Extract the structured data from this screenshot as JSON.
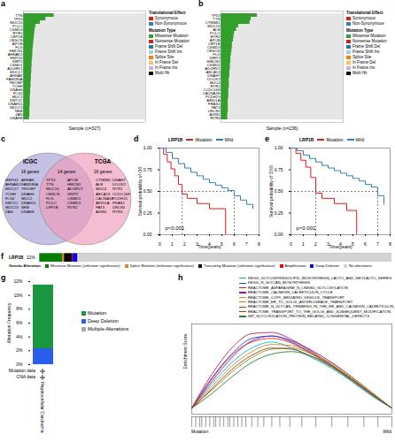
{
  "chart_data": [
    {
      "type": "oncoplot",
      "panel": "a",
      "x_label": "Sample (n=327)",
      "xlim": [
        0,
        327
      ],
      "tick_labels": "y",
      "color": "#33a02c",
      "genes": [
        "TTN",
        "TP53",
        "MUC16",
        "PCLO",
        "CSMD3",
        "RYR2",
        "LRP1B",
        "OBSCN",
        "APOB",
        "FLG",
        "HMCN1",
        "AHNAK2",
        "HSPG2",
        "XIRP2",
        "CSMD1",
        "ADGRV1",
        "MUC17",
        "AHNAK",
        "FAM186A",
        "TRIOBP",
        "TCHH",
        "DNAH6",
        "FLG2",
        "MUC2",
        "KMT2C",
        "DNAH11",
        "MUC13",
        "NEB",
        "ZAN",
        "DNAH8"
      ],
      "values": [
        82,
        60,
        45,
        33,
        31,
        30,
        29,
        28,
        27,
        26,
        25,
        25,
        24,
        23,
        23,
        22,
        22,
        21,
        21,
        20,
        20,
        19,
        19,
        18,
        18,
        18,
        17,
        17,
        17,
        16
      ],
      "legend_groups": [
        {
          "title": "Translational Effect",
          "items": [
            {
              "name": "Synonymous",
              "color": "#e41a1c"
            },
            {
              "name": "Non-Synonymous",
              "color": "#377eb8"
            }
          ]
        },
        {
          "title": "Mutation Type",
          "items": [
            {
              "name": "Missense Mutation",
              "color": "#33a02c"
            },
            {
              "name": "Nonsense Mutation",
              "color": "#e31a1c"
            },
            {
              "name": "Frame Shift Del",
              "color": "#1f78b4"
            },
            {
              "name": "Frame Shift Ins",
              "color": "#a6cee3"
            },
            {
              "name": "Splice Site",
              "color": "#ff7f00"
            },
            {
              "name": "In Frame Del",
              "color": "#fdbf6f"
            },
            {
              "name": "In Frame Ins",
              "color": "#cab2d6"
            },
            {
              "name": "Multi Hit",
              "color": "#000000"
            }
          ]
        }
      ]
    },
    {
      "type": "oncoplot",
      "panel": "b",
      "x_label": "Sample (n=236)",
      "xlim": [
        0,
        236
      ],
      "tick_labels": "y",
      "color": "#33a02c",
      "genes": [
        "TP53",
        "TTN",
        "CTNNB1",
        "MUC16",
        "ALB",
        "PCLO",
        "RYR2",
        "APOB",
        "LRP1B",
        "CSMD3",
        "OBSCN",
        "FLG",
        "XIRP2",
        "HMCN1",
        "CSMD1",
        "ADGRV1",
        "ABCA13",
        "DNAH7",
        "DOCK2",
        "MUC4",
        "RYR1",
        "CCDC168",
        "CACNA1E",
        "PCDH15",
        "ARID1A",
        "FRAS1",
        "FAT3",
        "UNC80",
        "AXIN1",
        "RYR3"
      ],
      "values": [
        70,
        58,
        56,
        34,
        30,
        26,
        25,
        24,
        22,
        22,
        21,
        20,
        19,
        19,
        18,
        18,
        17,
        17,
        16,
        16,
        16,
        15,
        15,
        15,
        14,
        14,
        14,
        14,
        13,
        13
      ],
      "legend_groups": [
        {
          "title": "Translational Effect",
          "items": [
            {
              "name": "Synonymous",
              "color": "#e41a1c"
            },
            {
              "name": "Non-Synonymous",
              "color": "#377eb8"
            }
          ]
        },
        {
          "title": "Mutation Type",
          "items": [
            {
              "name": "Missense Mutation",
              "color": "#33a02c"
            },
            {
              "name": "Nonsense Mutation",
              "color": "#e31a1c"
            },
            {
              "name": "Frame Shift Del",
              "color": "#1f78b4"
            },
            {
              "name": "Frame Shift Ins",
              "color": "#a6cee3"
            },
            {
              "name": "Splice Site",
              "color": "#ff7f00"
            },
            {
              "name": "In Frame Del",
              "color": "#fdbf6f"
            },
            {
              "name": "In Frame Ins",
              "color": "#cab2d6"
            },
            {
              "name": "Multi Hit",
              "color": "#000000"
            }
          ]
        }
      ]
    },
    {
      "type": "venn",
      "panel": "c",
      "sets": [
        {
          "name": "ICGC",
          "label": "16 genes",
          "color": "#a59fd6",
          "genes": [
            "HSPG2",
            "AHNAK2",
            "MUC17",
            "TCHH",
            "FLG2",
            "KMT2C",
            "MUC13",
            "ZAN",
            "AHNAK",
            "FAM186A",
            "TRIOBP",
            "DNAH6",
            "MUC2",
            "DNAH11",
            "NEB",
            "DNAH8"
          ]
        },
        {
          "name": "TCGA",
          "label": "16 genes",
          "color": "#ef9ab8",
          "genes": [
            "CTNNB1",
            "ALB",
            "MUC4",
            "ABCA13",
            "CACNA1E",
            "ARID1A",
            "FAT3",
            "AXIN1",
            "DNAH7",
            "DOCK2",
            "RYR1",
            "CCDC168",
            "PCDH15",
            "FRAS1",
            "UNC80",
            "RYR3"
          ]
        }
      ],
      "intersection": {
        "label": "14 genes",
        "genes": [
          "TP53",
          "TTN",
          "MUC16",
          "OBSCN",
          "FLG",
          "PCLO",
          "LRP1B",
          "APOB",
          "HMCN1",
          "ADGRV1",
          "XIRP2",
          "CSMD1",
          "CSMD3",
          "RYR2"
        ]
      }
    },
    {
      "type": "survival",
      "panel": "d",
      "legend_title": "LRP1B",
      "xlabel": "Time(years)",
      "ylabel": "Survival probability of OS",
      "xlim": [
        0,
        8
      ],
      "xticks": [
        0,
        1,
        2,
        3,
        4,
        5,
        6,
        7,
        8
      ],
      "ylim": [
        0,
        1
      ],
      "yticks": [
        {
          "value": 0,
          "label": "0.00"
        },
        {
          "value": 0.25,
          "label": "0.25"
        },
        {
          "value": 0.5,
          "label": "0.50"
        },
        {
          "value": 0.75,
          "label": "0.75"
        },
        {
          "value": 1,
          "label": "1.00"
        }
      ],
      "annotation": "p<0.001",
      "reference_line": 0.5,
      "series": [
        {
          "name": "Mutation",
          "color": "#e41a1c",
          "x": [
            0,
            0.3,
            0.6,
            0.9,
            1.2,
            1.5,
            1.8,
            2.2,
            3,
            4,
            5.3
          ],
          "values": [
            1,
            0.93,
            0.84,
            0.76,
            0.68,
            0.58,
            0.47,
            0.42,
            0.36,
            0.3,
            0
          ],
          "median": 1.8
        },
        {
          "name": "Wild",
          "color": "#377eb8",
          "x": [
            0,
            0.5,
            1,
            1.5,
            2,
            2.5,
            3,
            3.5,
            4,
            4.5,
            5,
            5.5,
            6,
            6.5,
            7,
            7.5
          ],
          "values": [
            1,
            0.95,
            0.88,
            0.82,
            0.77,
            0.72,
            0.68,
            0.64,
            0.6,
            0.57,
            0.54,
            0.51,
            0.45,
            0.4,
            0.35,
            0.3
          ],
          "median": 6
        }
      ]
    },
    {
      "type": "survival",
      "panel": "e",
      "legend_title": "LRP1B",
      "xlabel": "Time(years)",
      "ylabel": "Survival probability of DSS",
      "xlim": [
        0,
        8
      ],
      "xticks": [
        0,
        1,
        2,
        3,
        4,
        5,
        6,
        7,
        8
      ],
      "ylim": [
        0,
        1
      ],
      "yticks": [
        {
          "value": 0,
          "label": "0.00"
        },
        {
          "value": 0.25,
          "label": "0.25"
        },
        {
          "value": 0.5,
          "label": "0.50"
        },
        {
          "value": 0.75,
          "label": "0.75"
        },
        {
          "value": 1,
          "label": "1.00"
        }
      ],
      "annotation": "p<0.001",
      "reference_line": 0.5,
      "series": [
        {
          "name": "Mutation",
          "color": "#e41a1c",
          "x": [
            0,
            0.4,
            0.8,
            1.2,
            1.6,
            2,
            2.5,
            3.5,
            4.5,
            5.3
          ],
          "values": [
            1,
            0.94,
            0.86,
            0.78,
            0.66,
            0.48,
            0.42,
            0.36,
            0.28,
            0
          ],
          "median": 2
        },
        {
          "name": "Wild",
          "color": "#377eb8",
          "x": [
            0,
            0.5,
            1,
            1.5,
            2,
            2.5,
            3,
            3.5,
            4,
            4.5,
            5,
            5.5,
            6,
            6.5,
            7,
            7.5
          ],
          "values": [
            1,
            0.97,
            0.92,
            0.88,
            0.84,
            0.8,
            0.77,
            0.74,
            0.71,
            0.68,
            0.65,
            0.62,
            0.58,
            0.55,
            0.45,
            0.35
          ],
          "median": 7
        }
      ]
    },
    {
      "type": "oncoprint",
      "panel": "f",
      "gene": "LRP1B",
      "annotation": "11%",
      "legend_title": "Genetic Alteration",
      "orientation": "horizontal",
      "stacked": true,
      "xlim": [
        0,
        366
      ],
      "categories": [
        "Missense Mutation (unknown significance)",
        "Splice Mutation (unknown significance)",
        "Truncating Mutation (unknown significance)",
        "Amplification",
        "Deep Deletion",
        "No alterations"
      ],
      "values": [
        24,
        2,
        8,
        1,
        5,
        326
      ],
      "colors": [
        "#008000",
        "#e5802b",
        "#000000",
        "#ff0000",
        "#0000ff",
        "#d3d3d3"
      ]
    },
    {
      "type": "bar",
      "panel": "g",
      "stacked": true,
      "categories": [
        "Hepatocellular Carcinoma"
      ],
      "ylabel": "Alteration Frequency",
      "ylim": [
        0,
        12
      ],
      "yticks": [
        {
          "value": 0,
          "label": "0%"
        },
        {
          "value": 2,
          "label": "2%"
        },
        {
          "value": 4,
          "label": "4%"
        },
        {
          "value": 6,
          "label": "6%"
        },
        {
          "value": 8,
          "label": "8%"
        },
        {
          "value": 10,
          "label": "10%"
        },
        {
          "value": 12,
          "label": "12%"
        }
      ],
      "series": [
        {
          "name": "Mutation",
          "color": "#1a9641",
          "values": [
            9.2
          ]
        },
        {
          "name": "Deep Deletion",
          "color": "#2a5eea",
          "values": [
            2.3
          ]
        },
        {
          "name": "Multiple Alterations",
          "color": "#aaaaaa",
          "values": [
            0
          ]
        }
      ],
      "data_rows": [
        "Mutation data",
        "CNA data"
      ]
    },
    {
      "type": "line",
      "panel": "h",
      "ylabel": "Enrichment Score",
      "xlim": [
        0,
        100
      ],
      "ylim": [
        -0.05,
        0.7
      ],
      "tick_labels": false,
      "x": [
        0,
        10,
        20,
        30,
        40,
        50,
        60,
        70,
        80,
        90,
        100
      ],
      "series": [
        {
          "name": "KEGG_GLYCOSPHINGOLIPID_BIOSYNTHESIS_LACTO_AND_NEOLACTO_SERIES",
          "color": "#00bcd4",
          "values": [
            0,
            0.2,
            0.38,
            0.5,
            0.55,
            0.5,
            0.42,
            0.33,
            0.22,
            0.1,
            0
          ]
        },
        {
          "name": "KEGG_N_GLYCAN_BIOSYNTHESIS",
          "color": "#1f3fbf",
          "values": [
            0,
            0.25,
            0.45,
            0.58,
            0.6,
            0.55,
            0.46,
            0.35,
            0.24,
            0.12,
            0
          ]
        },
        {
          "name": "REACTOME_ASPARAGINE_N_LINKED_GLYCOSYLATION",
          "color": "#c2185b",
          "values": [
            0,
            0.28,
            0.5,
            0.62,
            0.63,
            0.57,
            0.47,
            0.36,
            0.24,
            0.12,
            0
          ]
        },
        {
          "name": "REACTOME_CALNEXIN_CALRETICULIN_CYCLE",
          "color": "#7b1fa2",
          "values": [
            0,
            0.22,
            0.42,
            0.56,
            0.6,
            0.56,
            0.48,
            0.38,
            0.26,
            0.13,
            0
          ]
        },
        {
          "name": "REACTOME_COPII_MEDIATED_VESICLE_TRANSPORT",
          "color": "#e67e22",
          "values": [
            0,
            0.18,
            0.35,
            0.47,
            0.53,
            0.52,
            0.46,
            0.37,
            0.26,
            0.13,
            0
          ]
        },
        {
          "name": "REACTOME_ER_TO_GOLGI_ANTEROGRADE_TRANSPORT",
          "color": "#8d8d2a",
          "values": [
            0,
            0.15,
            0.3,
            0.42,
            0.49,
            0.5,
            0.45,
            0.36,
            0.25,
            0.12,
            0
          ]
        },
        {
          "name": "REACTOME_N_GLYCAN_TRIMMING_IN_THE_ER_AND_CALNEXIN_CALRETICULIN_CYCLE",
          "color": "#d32f2f",
          "values": [
            0,
            0.24,
            0.44,
            0.55,
            0.58,
            0.54,
            0.45,
            0.35,
            0.23,
            0.11,
            0
          ]
        },
        {
          "name": "REACTOME_TRANSPORT_TO_THE_GOLGI_AND_SUBSEQUENT_MODIFICATION",
          "color": "#8b4513",
          "values": [
            0,
            0.16,
            0.32,
            0.44,
            0.5,
            0.49,
            0.43,
            0.34,
            0.23,
            0.11,
            0
          ]
        },
        {
          "name": "WP_GLYCOSYLATION_PROTEIN_RELATED_CONGENITAL_DEFECTS",
          "color": "#2e7d32",
          "values": [
            0,
            0.12,
            0.26,
            0.38,
            0.45,
            0.47,
            0.43,
            0.35,
            0.24,
            0.12,
            0
          ]
        }
      ],
      "hits": [
        2,
        4,
        5,
        7,
        9,
        11,
        12,
        14,
        16,
        18,
        19,
        21,
        23,
        25,
        27,
        30,
        33,
        36,
        40,
        44,
        49,
        55,
        62,
        70,
        78,
        86,
        93
      ],
      "group_labels": [
        "Mutation",
        "Wild"
      ]
    }
  ]
}
